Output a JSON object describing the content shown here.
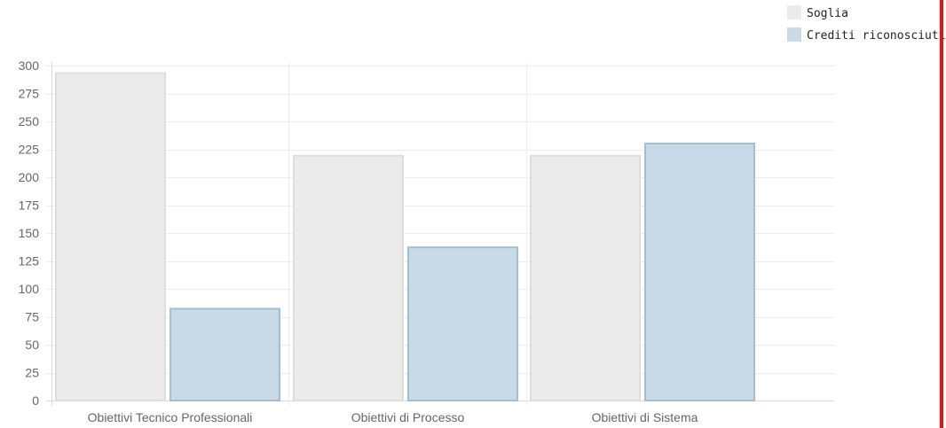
{
  "chart_data": {
    "type": "bar",
    "categories": [
      "Obiettivi Tecnico Professionali",
      "Obiettivi di Processo",
      "Obiettivi di Sistema"
    ],
    "series": [
      {
        "name": "Soglia",
        "values": [
          294,
          220,
          220
        ],
        "fill": "#ebebeb",
        "stroke": "#dddddd"
      },
      {
        "name": "Crediti riconosciuti",
        "values": [
          83,
          138,
          231
        ],
        "fill": "#c8dae5",
        "stroke": "#9fc0d3"
      }
    ],
    "yticks": [
      0,
      25,
      50,
      75,
      100,
      125,
      150,
      175,
      200,
      225,
      250,
      275,
      300
    ],
    "ylim": [
      0,
      300
    ],
    "grid": true,
    "legend_position": "top-right",
    "title": "",
    "xlabel": "",
    "ylabel": ""
  },
  "colors": {
    "grid": "#ececec",
    "axis": "#d8d8d8",
    "right_border": "#ee1111"
  }
}
